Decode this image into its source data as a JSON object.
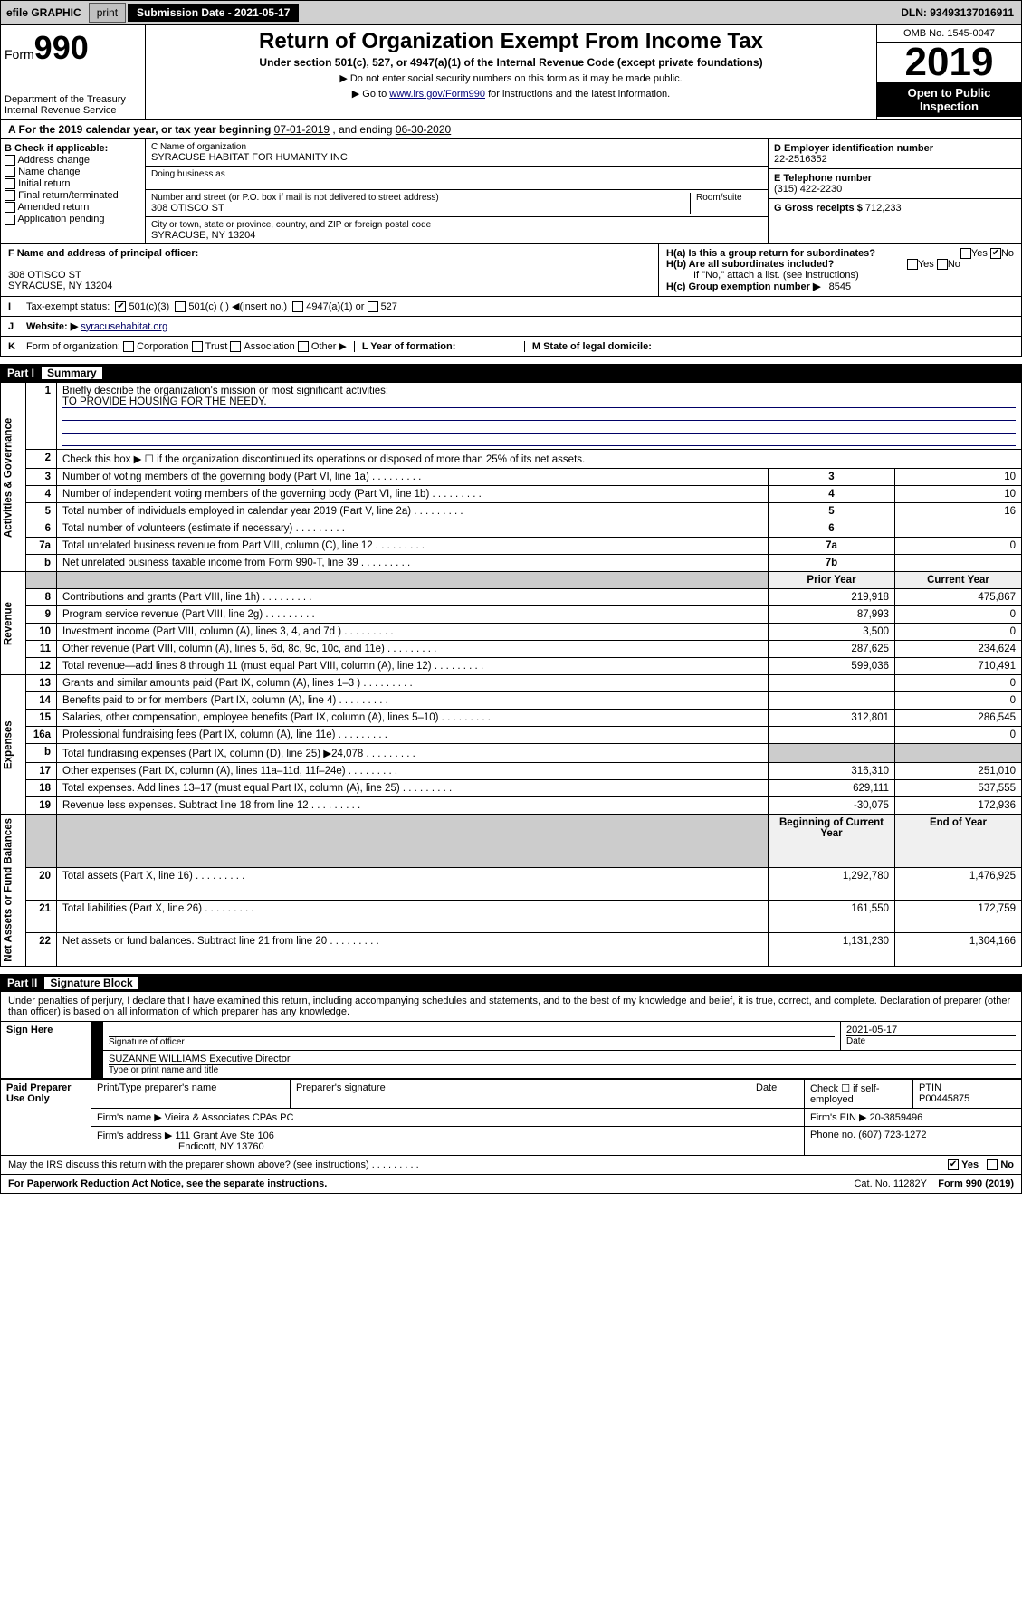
{
  "topbar": {
    "efile": "efile GRAPHIC",
    "print": "print",
    "subLabel": "Submission Date - 2021-05-17",
    "dln": "DLN: 93493137016911"
  },
  "header": {
    "formWord": "Form",
    "formNum": "990",
    "dept": "Department of the Treasury\nInternal Revenue Service",
    "title": "Return of Organization Exempt From Income Tax",
    "sub": "Under section 501(c), 527, or 4947(a)(1) of the Internal Revenue Code (except private foundations)",
    "note1": "▶ Do not enter social security numbers on this form as it may be made public.",
    "note2a": "▶ Go to ",
    "note2link": "www.irs.gov/Form990",
    "note2b": " for instructions and the latest information.",
    "omb": "OMB No. 1545-0047",
    "year": "2019",
    "pub": "Open to Public Inspection"
  },
  "sectionA": {
    "label": "A For the 2019 calendar year, or tax year beginning ",
    "begin": "07-01-2019",
    "mid": " , and ending ",
    "end": "06-30-2020"
  },
  "blockB": {
    "header": "B Check if applicable:",
    "items": [
      "Address change",
      "Name change",
      "Initial return",
      "Final return/terminated",
      "Amended return",
      "Application pending"
    ]
  },
  "blockC": {
    "nameLabel": "C Name of organization",
    "name": "SYRACUSE HABITAT FOR HUMANITY INC",
    "dbaLabel": "Doing business as",
    "dba": "",
    "addrLabel": "Number and street (or P.O. box if mail is not delivered to street address)",
    "roomLabel": "Room/suite",
    "addr": "308 OTISCO ST",
    "cityLabel": "City or town, state or province, country, and ZIP or foreign postal code",
    "city": "SYRACUSE, NY  13204"
  },
  "blockD": {
    "label": "D Employer identification number",
    "val": "22-2516352"
  },
  "blockE": {
    "label": "E Telephone number",
    "val": "(315) 422-2230"
  },
  "blockG": {
    "label": "G Gross receipts $",
    "val": "712,233"
  },
  "blockF": {
    "label": "F  Name and address of principal officer:",
    "addr1": "308 OTISCO ST",
    "addr2": "SYRACUSE, NY  13204"
  },
  "blockH": {
    "a": "H(a)  Is this a group return for subordinates?",
    "b": "H(b)  Are all subordinates included?",
    "bNote": "If \"No,\" attach a list. (see instructions)",
    "c": "H(c)  Group exemption number ▶",
    "cVal": "8545",
    "yes": "Yes",
    "no": "No",
    "noChecked": "✔"
  },
  "rowI": {
    "label": "I",
    "text": "Tax-exempt status:",
    "opt1": "501(c)(3)",
    "opt2": "501(c) (   ) ◀(insert no.)",
    "opt3": "4947(a)(1) or",
    "opt4": "527",
    "checked": "✔"
  },
  "rowJ": {
    "label": "J",
    "text": "Website: ▶",
    "val": "syracusehabitat.org"
  },
  "rowK": {
    "label": "K",
    "text": "Form of organization:",
    "opts": [
      "Corporation",
      "Trust",
      "Association",
      "Other ▶"
    ],
    "L": "L Year of formation:",
    "Lval": "",
    "M": "M State of legal domicile:",
    "Mval": ""
  },
  "part1": {
    "num": "Part I",
    "title": "Summary"
  },
  "summary": {
    "groups": [
      {
        "label": "Activities & Governance",
        "rows": [
          {
            "n": "1",
            "text": "Briefly describe the organization's mission or most significant activities:",
            "mission": "TO PROVIDE HOUSING FOR THE NEEDY.",
            "span": true
          },
          {
            "n": "2",
            "text": "Check this box ▶ ☐  if the organization discontinued its operations or disposed of more than 25% of its net assets.",
            "span": true
          },
          {
            "n": "3",
            "text": "Number of voting members of the governing body (Part VI, line 1a)",
            "box": "3",
            "val": "10"
          },
          {
            "n": "4",
            "text": "Number of independent voting members of the governing body (Part VI, line 1b)",
            "box": "4",
            "val": "10"
          },
          {
            "n": "5",
            "text": "Total number of individuals employed in calendar year 2019 (Part V, line 2a)",
            "box": "5",
            "val": "16"
          },
          {
            "n": "6",
            "text": "Total number of volunteers (estimate if necessary)",
            "box": "6",
            "val": ""
          },
          {
            "n": "7a",
            "text": "Total unrelated business revenue from Part VIII, column (C), line 12",
            "box": "7a",
            "val": "0"
          },
          {
            "n": "b",
            "text": "Net unrelated business taxable income from Form 990-T, line 39",
            "box": "7b",
            "val": ""
          }
        ]
      },
      {
        "label": "Revenue",
        "header": [
          "Prior Year",
          "Current Year"
        ],
        "rows": [
          {
            "n": "8",
            "text": "Contributions and grants (Part VIII, line 1h)",
            "py": "219,918",
            "cy": "475,867"
          },
          {
            "n": "9",
            "text": "Program service revenue (Part VIII, line 2g)",
            "py": "87,993",
            "cy": "0"
          },
          {
            "n": "10",
            "text": "Investment income (Part VIII, column (A), lines 3, 4, and 7d )",
            "py": "3,500",
            "cy": "0"
          },
          {
            "n": "11",
            "text": "Other revenue (Part VIII, column (A), lines 5, 6d, 8c, 9c, 10c, and 11e)",
            "py": "287,625",
            "cy": "234,624"
          },
          {
            "n": "12",
            "text": "Total revenue—add lines 8 through 11 (must equal Part VIII, column (A), line 12)",
            "py": "599,036",
            "cy": "710,491"
          }
        ]
      },
      {
        "label": "Expenses",
        "rows": [
          {
            "n": "13",
            "text": "Grants and similar amounts paid (Part IX, column (A), lines 1–3 )",
            "py": "",
            "cy": "0"
          },
          {
            "n": "14",
            "text": "Benefits paid to or for members (Part IX, column (A), line 4)",
            "py": "",
            "cy": "0"
          },
          {
            "n": "15",
            "text": "Salaries, other compensation, employee benefits (Part IX, column (A), lines 5–10)",
            "py": "312,801",
            "cy": "286,545"
          },
          {
            "n": "16a",
            "text": "Professional fundraising fees (Part IX, column (A), line 11e)",
            "py": "",
            "cy": "0"
          },
          {
            "n": "b",
            "text": "Total fundraising expenses (Part IX, column (D), line 25) ▶24,078",
            "py": "shade",
            "cy": "shade"
          },
          {
            "n": "17",
            "text": "Other expenses (Part IX, column (A), lines 11a–11d, 11f–24e)",
            "py": "316,310",
            "cy": "251,010"
          },
          {
            "n": "18",
            "text": "Total expenses. Add lines 13–17 (must equal Part IX, column (A), line 25)",
            "py": "629,111",
            "cy": "537,555"
          },
          {
            "n": "19",
            "text": "Revenue less expenses. Subtract line 18 from line 12",
            "py": "-30,075",
            "cy": "172,936"
          }
        ]
      },
      {
        "label": "Net Assets or Fund Balances",
        "header": [
          "Beginning of Current Year",
          "End of Year"
        ],
        "rows": [
          {
            "n": "20",
            "text": "Total assets (Part X, line 16)",
            "py": "1,292,780",
            "cy": "1,476,925"
          },
          {
            "n": "21",
            "text": "Total liabilities (Part X, line 26)",
            "py": "161,550",
            "cy": "172,759"
          },
          {
            "n": "22",
            "text": "Net assets or fund balances. Subtract line 21 from line 20",
            "py": "1,131,230",
            "cy": "1,304,166"
          }
        ]
      }
    ]
  },
  "part2": {
    "num": "Part II",
    "title": "Signature Block"
  },
  "decl": "Under penalties of perjury, I declare that I have examined this return, including accompanying schedules and statements, and to the best of my knowledge and belief, it is true, correct, and complete. Declaration of preparer (other than officer) is based on all information of which preparer has any knowledge.",
  "sign": {
    "here": "Sign Here",
    "sigOff": "Signature of officer",
    "date": "2021-05-17",
    "dateLabel": "Date",
    "name": "SUZANNE WILLIAMS Executive Director",
    "nameLabel": "Type or print name and title"
  },
  "paid": {
    "label": "Paid Preparer Use Only",
    "prepName": "Print/Type preparer's name",
    "prepSig": "Preparer's signature",
    "date": "Date",
    "check": "Check ☐ if self-employed",
    "ptin": "PTIN",
    "ptinVal": "P00445875",
    "firm": "Firm's name    ▶",
    "firmVal": "Vieira & Associates CPAs PC",
    "firmEin": "Firm's EIN ▶",
    "firmEinVal": "20-3859496",
    "firmAddr": "Firm's address ▶",
    "firmAddrVal": "111 Grant Ave Ste 106",
    "firmCity": "Endicott, NY  13760",
    "phone": "Phone no.",
    "phoneVal": "(607) 723-1272"
  },
  "discuss": {
    "text": "May the IRS discuss this return with the preparer shown above? (see instructions)",
    "yes": "Yes",
    "no": "No",
    "checked": "✔"
  },
  "footer": {
    "pra": "For Paperwork Reduction Act Notice, see the separate instructions.",
    "cat": "Cat. No. 11282Y",
    "form": "Form 990 (2019)"
  }
}
